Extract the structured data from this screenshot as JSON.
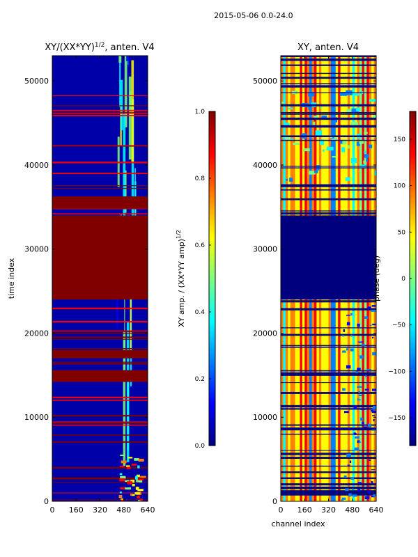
{
  "figure": {
    "suptitle": "2015-05-06 0.0-24.0",
    "colors": {
      "high_fill": "#800000",
      "low_fill": "#0000a8",
      "jet": [
        "#00007f",
        "#0000ff",
        "#007fff",
        "#00ffff",
        "#7fff7f",
        "#ffff00",
        "#ff7f00",
        "#ff0000",
        "#7f0000"
      ]
    }
  },
  "chart_data": [
    {
      "type": "heatmap",
      "title_main": "XY/(XX*YY)",
      "title_sup": "1/2",
      "title_tail": ", anten. V4",
      "xlabel": "",
      "ylabel": "time index",
      "xlim": [
        0,
        640
      ],
      "ylim": [
        0,
        53000
      ],
      "xticks": [
        0,
        160,
        320,
        480,
        640
      ],
      "yticks": [
        0,
        10000,
        20000,
        30000,
        40000,
        50000
      ],
      "colorbar": {
        "label": "XY amp. / (XX*YY amp)",
        "label_sup": "1/2",
        "range": [
          0.0,
          1.0
        ],
        "ticks": [
          "0.0",
          "0.2",
          "0.4",
          "0.6",
          "0.8",
          "1.0"
        ],
        "tick_values": [
          0.0,
          0.2,
          0.4,
          0.6,
          0.8,
          1.0
        ]
      },
      "regions": [
        {
          "name": "saturated-block",
          "y": [
            24000,
            34000
          ],
          "value": 1.0
        },
        {
          "name": "high-band",
          "y": [
            34800,
            36200
          ],
          "value": 1.0
        },
        {
          "name": "high-band",
          "y": [
            17000,
            18000
          ],
          "value": 1.0
        },
        {
          "name": "high-band",
          "y": [
            14200,
            15600
          ],
          "value": 1.0
        }
      ]
    },
    {
      "type": "heatmap",
      "title_main": "XY, anten. V4",
      "xlabel": "channel index",
      "ylabel": "",
      "xlim": [
        0,
        640
      ],
      "ylim": [
        0,
        53000
      ],
      "xticks": [
        0,
        160,
        320,
        480,
        640
      ],
      "yticks": [
        0,
        10000,
        20000,
        30000,
        40000,
        50000
      ],
      "colorbar": {
        "label": "phase (deg)",
        "range": [
          -180,
          180
        ],
        "ticks": [
          "−150",
          "−100",
          "−50",
          "0",
          "50",
          "100",
          "150"
        ],
        "tick_values": [
          -150,
          -100,
          -50,
          0,
          50,
          100,
          150
        ]
      },
      "regions": [
        {
          "name": "flagged-block",
          "y": [
            24000,
            34000
          ],
          "value": -180
        }
      ]
    }
  ]
}
